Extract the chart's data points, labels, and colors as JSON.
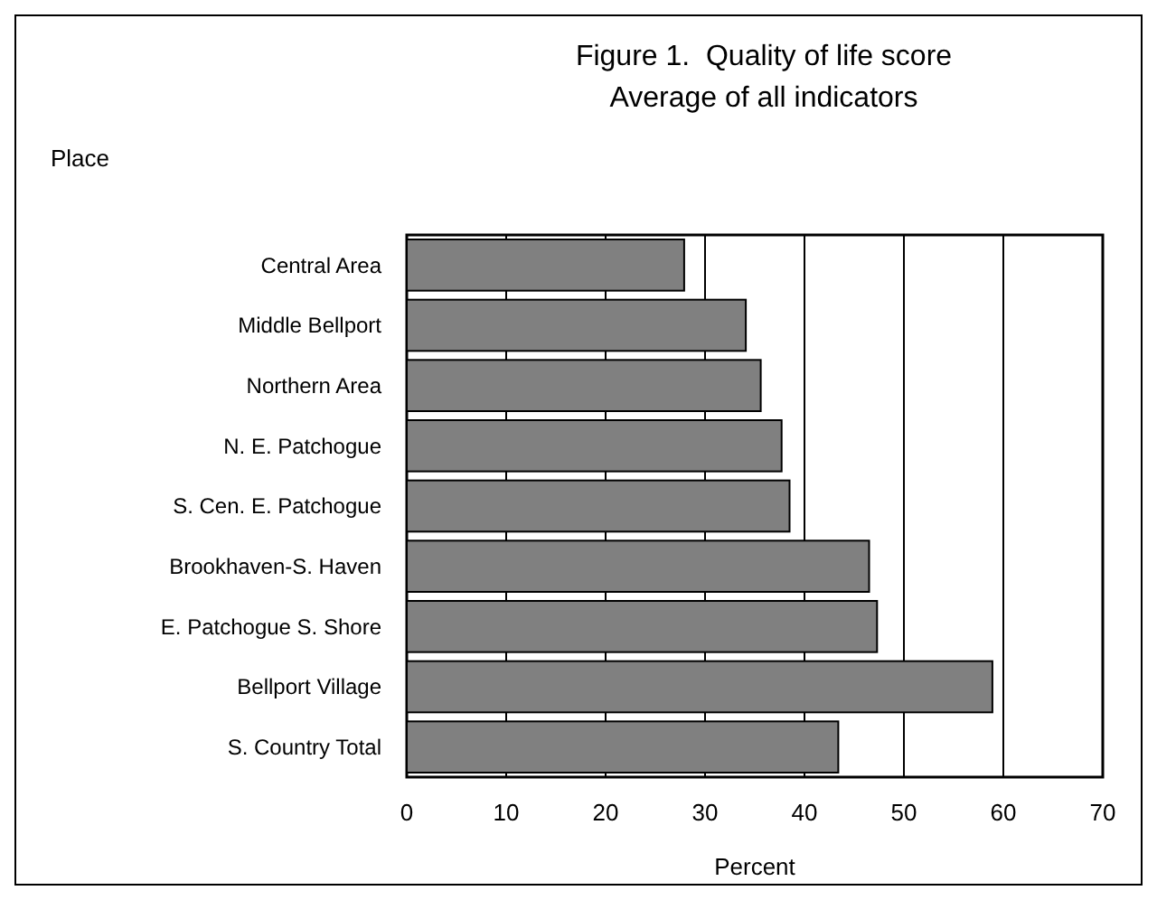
{
  "chart_data": {
    "type": "bar",
    "orientation": "horizontal",
    "title": "Figure 1.  Quality of life score",
    "subtitle": "Average of all indicators",
    "ylabel": "Place",
    "xlabel": "Percent",
    "categories": [
      "Central Area",
      "Middle Bellport",
      "Northern Area",
      "N. E. Patchogue",
      "S. Cen. E. Patchogue",
      "Brookhaven-S. Haven",
      "E. Patchogue S. Shore",
      "Bellport Village",
      "S. Country Total"
    ],
    "values": [
      27.9,
      34.1,
      35.6,
      37.7,
      38.5,
      46.5,
      47.3,
      58.9,
      43.4
    ],
    "color": "#808080",
    "xlim": [
      0,
      70
    ],
    "xticks": [
      0,
      10,
      20,
      30,
      40,
      50,
      60,
      70
    ],
    "grid": "x"
  }
}
